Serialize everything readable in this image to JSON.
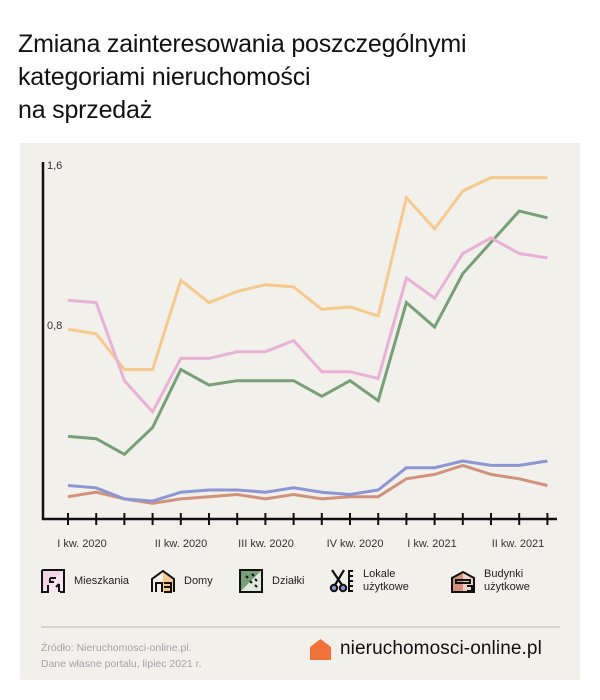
{
  "title": {
    "lines": [
      "Zmiana zainteresowania poszczególnymi",
      "kategoriami nieruchomości",
      "na sprzedaż"
    ]
  },
  "axis": {
    "y_ticks": [
      {
        "label": "1,6",
        "value": 1.6
      },
      {
        "label": "0,8",
        "value": 0.8
      }
    ],
    "x_labels": [
      {
        "label": "I kw. 2020",
        "index": 0.5
      },
      {
        "label": "II kw. 2020",
        "index": 3.5
      },
      {
        "label": "III kw. 2020",
        "index": 6.5
      },
      {
        "label": "IV kw. 2020",
        "index": 9.5
      },
      {
        "label": "I kw. 2021",
        "index": 12.5
      },
      {
        "label": "II kw. 2021",
        "index": 15.5
      }
    ]
  },
  "legend": [
    {
      "key": "mieszkania",
      "label": "Mieszkania",
      "icon": "floorplan-icon"
    },
    {
      "key": "domy",
      "label": "Domy",
      "icon": "house-icon"
    },
    {
      "key": "dzialki",
      "label": "Działki",
      "icon": "land-plot-icon"
    },
    {
      "key": "lokale",
      "label_line1": "Lokale",
      "label_line2": "użytkowe",
      "icon": "scissors-ruler-icon"
    },
    {
      "key": "budynki",
      "label_line1": "Budynki",
      "label_line2": "użytkowe",
      "icon": "warehouse-icon"
    }
  ],
  "footer": {
    "source_line1": "Źródło: Nieruchomosci-online.pl.",
    "source_line2": "Dane własne portalu, lipiec 2021 r.",
    "brand": "nieruchomosci-online.pl",
    "brand_color": "#f07238"
  },
  "chart_data": {
    "type": "line",
    "title": "Zmiana zainteresowania poszczególnymi kategoriami nieruchomości na sprzedaż",
    "xlabel": "",
    "ylabel": "",
    "ylim": [
      0,
      1.6
    ],
    "grid": false,
    "legend_position": "bottom",
    "x_tick_count": 18,
    "categories": [
      "I kw. 2020",
      "",
      "",
      "II kw. 2020",
      "",
      "",
      "III kw. 2020",
      "",
      "",
      "IV kw. 2020",
      "",
      "",
      "I kw. 2021",
      "",
      "",
      "II kw. 2021",
      "",
      ""
    ],
    "series": [
      {
        "name": "Domy",
        "color": "#f8c98a",
        "values": [
          0.85,
          0.83,
          0.67,
          0.67,
          1.07,
          0.97,
          1.02,
          1.05,
          1.04,
          0.94,
          0.95,
          0.91,
          1.44,
          1.3,
          1.47,
          1.53,
          1.53,
          1.53
        ]
      },
      {
        "name": "Mieszkania",
        "color": "#ebb0d6",
        "values": [
          0.98,
          0.97,
          0.62,
          0.48,
          0.72,
          0.72,
          0.75,
          0.75,
          0.8,
          0.66,
          0.66,
          0.63,
          1.08,
          0.99,
          1.19,
          1.26,
          1.19,
          1.17
        ]
      },
      {
        "name": "Działki",
        "color": "#76a076",
        "values": [
          0.37,
          0.36,
          0.29,
          0.41,
          0.67,
          0.6,
          0.62,
          0.62,
          0.62,
          0.55,
          0.62,
          0.53,
          0.97,
          0.86,
          1.1,
          1.24,
          1.38,
          1.35
        ]
      },
      {
        "name": "Lokale użytkowe",
        "color": "#8c96d6",
        "values": [
          0.15,
          0.14,
          0.09,
          0.08,
          0.12,
          0.13,
          0.13,
          0.12,
          0.14,
          0.12,
          0.11,
          0.13,
          0.23,
          0.23,
          0.26,
          0.24,
          0.24,
          0.26
        ]
      },
      {
        "name": "Budynki użytkowe",
        "color": "#d4917a",
        "values": [
          0.1,
          0.12,
          0.09,
          0.07,
          0.09,
          0.1,
          0.11,
          0.09,
          0.11,
          0.09,
          0.1,
          0.1,
          0.18,
          0.2,
          0.24,
          0.2,
          0.18,
          0.15
        ]
      }
    ]
  }
}
